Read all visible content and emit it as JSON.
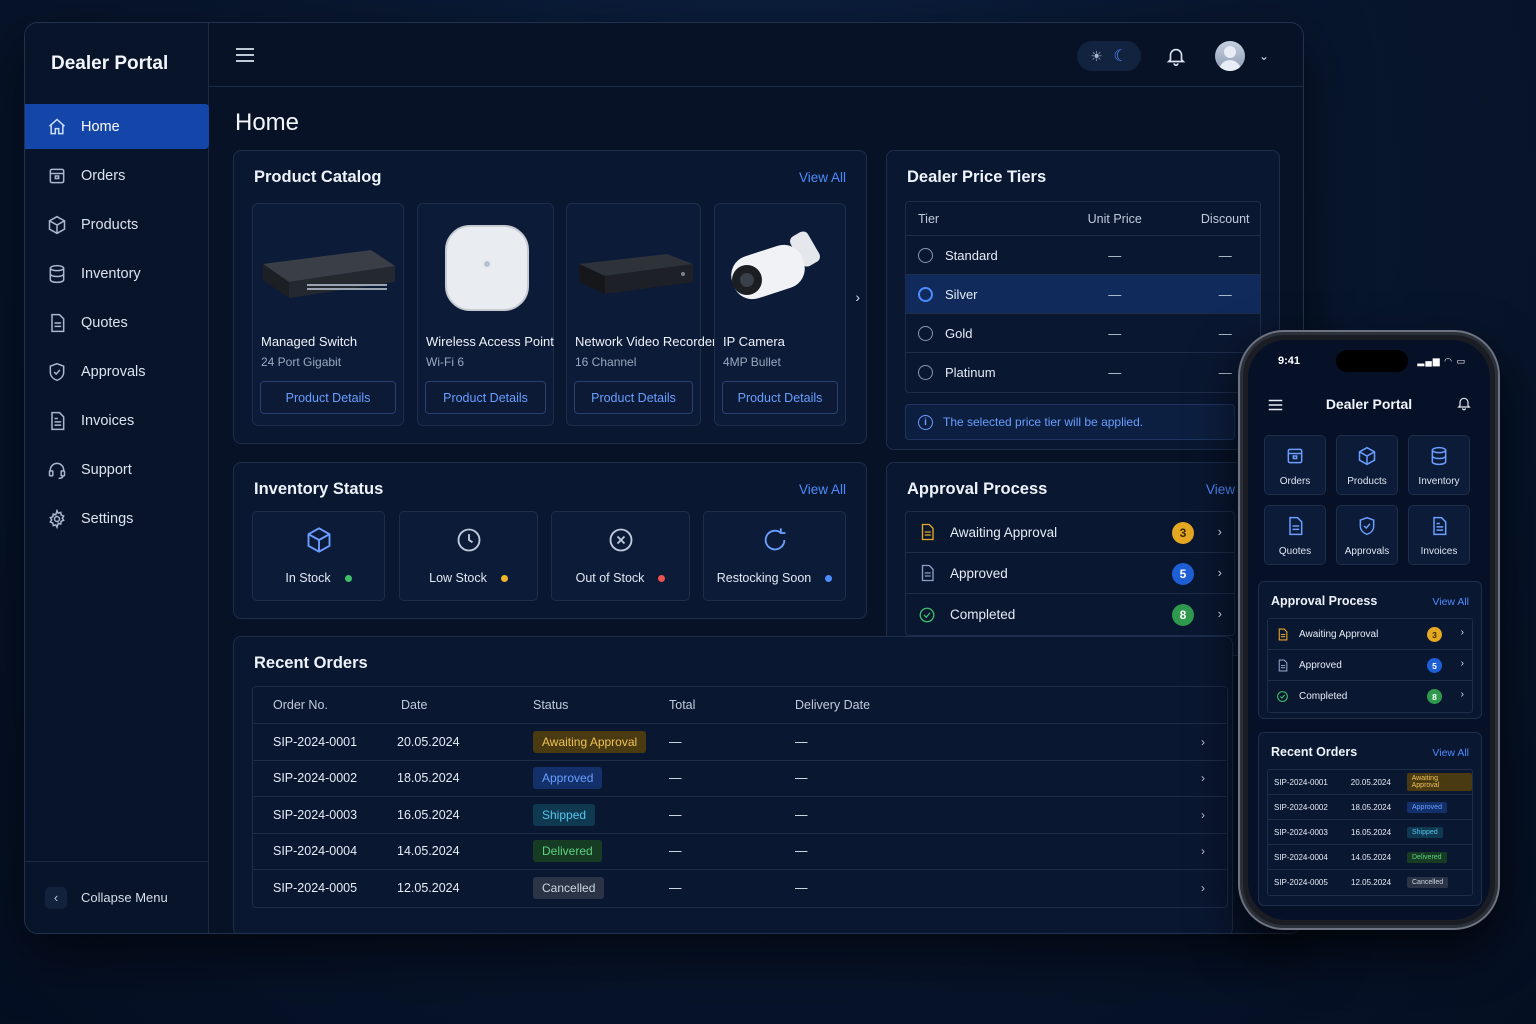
{
  "app": {
    "brand": "Dealer Portal",
    "page_title": "Home"
  },
  "sidebar": {
    "items": [
      {
        "label": "Home",
        "icon": "home-icon",
        "active": true
      },
      {
        "label": "Orders",
        "icon": "orders-icon"
      },
      {
        "label": "Products",
        "icon": "box-icon"
      },
      {
        "label": "Inventory",
        "icon": "database-icon"
      },
      {
        "label": "Quotes",
        "icon": "document-icon"
      },
      {
        "label": "Approvals",
        "icon": "shield-check-icon"
      },
      {
        "label": "Invoices",
        "icon": "invoice-icon"
      },
      {
        "label": "Support",
        "icon": "headset-icon"
      },
      {
        "label": "Settings",
        "icon": "gear-icon"
      }
    ],
    "collapse_label": "Collapse Menu"
  },
  "catalog": {
    "title": "Product Catalog",
    "view_all": "View All",
    "products": [
      {
        "name": "Managed Switch",
        "sub": "24 Port Gigabit",
        "button": "Product Details"
      },
      {
        "name": "Wireless Access Point",
        "sub": "Wi-Fi 6",
        "button": "Product Details"
      },
      {
        "name": "Network Video Recorder",
        "sub": "16 Channel",
        "button": "Product Details"
      },
      {
        "name": "IP Camera",
        "sub": "4MP Bullet",
        "button": "Product Details"
      }
    ]
  },
  "tiers": {
    "title": "Dealer Price Tiers",
    "headers": [
      "Tier",
      "Unit Price",
      "Discount"
    ],
    "rows": [
      {
        "tier": "Standard",
        "price": "—",
        "discount": "—",
        "selected": false
      },
      {
        "tier": "Silver",
        "price": "—",
        "discount": "—",
        "selected": true
      },
      {
        "tier": "Gold",
        "price": "—",
        "discount": "—",
        "selected": false
      },
      {
        "tier": "Platinum",
        "price": "—",
        "discount": "—",
        "selected": false
      }
    ],
    "note": "The selected price tier will be applied."
  },
  "inventory": {
    "title": "Inventory Status",
    "view_all": "View All",
    "items": [
      {
        "label": "In Stock",
        "color": "#3fbf6a"
      },
      {
        "label": "Low Stock",
        "color": "#f0b429"
      },
      {
        "label": "Out of Stock",
        "color": "#ef5350"
      },
      {
        "label": "Restocking Soon",
        "color": "#4c8cff"
      }
    ]
  },
  "approval": {
    "title": "Approval Process",
    "view_all": "View All",
    "items": [
      {
        "label": "Awaiting Approval",
        "count": "3",
        "color": "#e5a823"
      },
      {
        "label": "Approved",
        "count": "5",
        "color": "#1f5fd6"
      },
      {
        "label": "Completed",
        "count": "8",
        "color": "#2f9a4e"
      }
    ]
  },
  "orders": {
    "title": "Recent Orders",
    "headers": [
      "Order No.",
      "Date",
      "Status",
      "Total",
      "Delivery Date"
    ],
    "rows": [
      {
        "no": "SIP-2024-0001",
        "date": "20.05.2024",
        "status": "Awaiting Approval",
        "total": "—",
        "delivery": "—"
      },
      {
        "no": "SIP-2024-0002",
        "date": "18.05.2024",
        "status": "Approved",
        "total": "—",
        "delivery": "—"
      },
      {
        "no": "SIP-2024-0003",
        "date": "16.05.2024",
        "status": "Shipped",
        "total": "—",
        "delivery": "—"
      },
      {
        "no": "SIP-2024-0004",
        "date": "14.05.2024",
        "status": "Delivered",
        "total": "—",
        "delivery": "—"
      },
      {
        "no": "SIP-2024-0005",
        "date": "12.05.2024",
        "status": "Cancelled",
        "total": "—",
        "delivery": "—"
      }
    ]
  },
  "phone": {
    "time": "9:41",
    "title": "Dealer Portal",
    "tiles": [
      "Orders",
      "Products",
      "Inventory",
      "Quotes",
      "Approvals",
      "Invoices"
    ],
    "approval_title": "Approval Process",
    "orders_title": "Recent Orders",
    "view_all": "View All"
  }
}
